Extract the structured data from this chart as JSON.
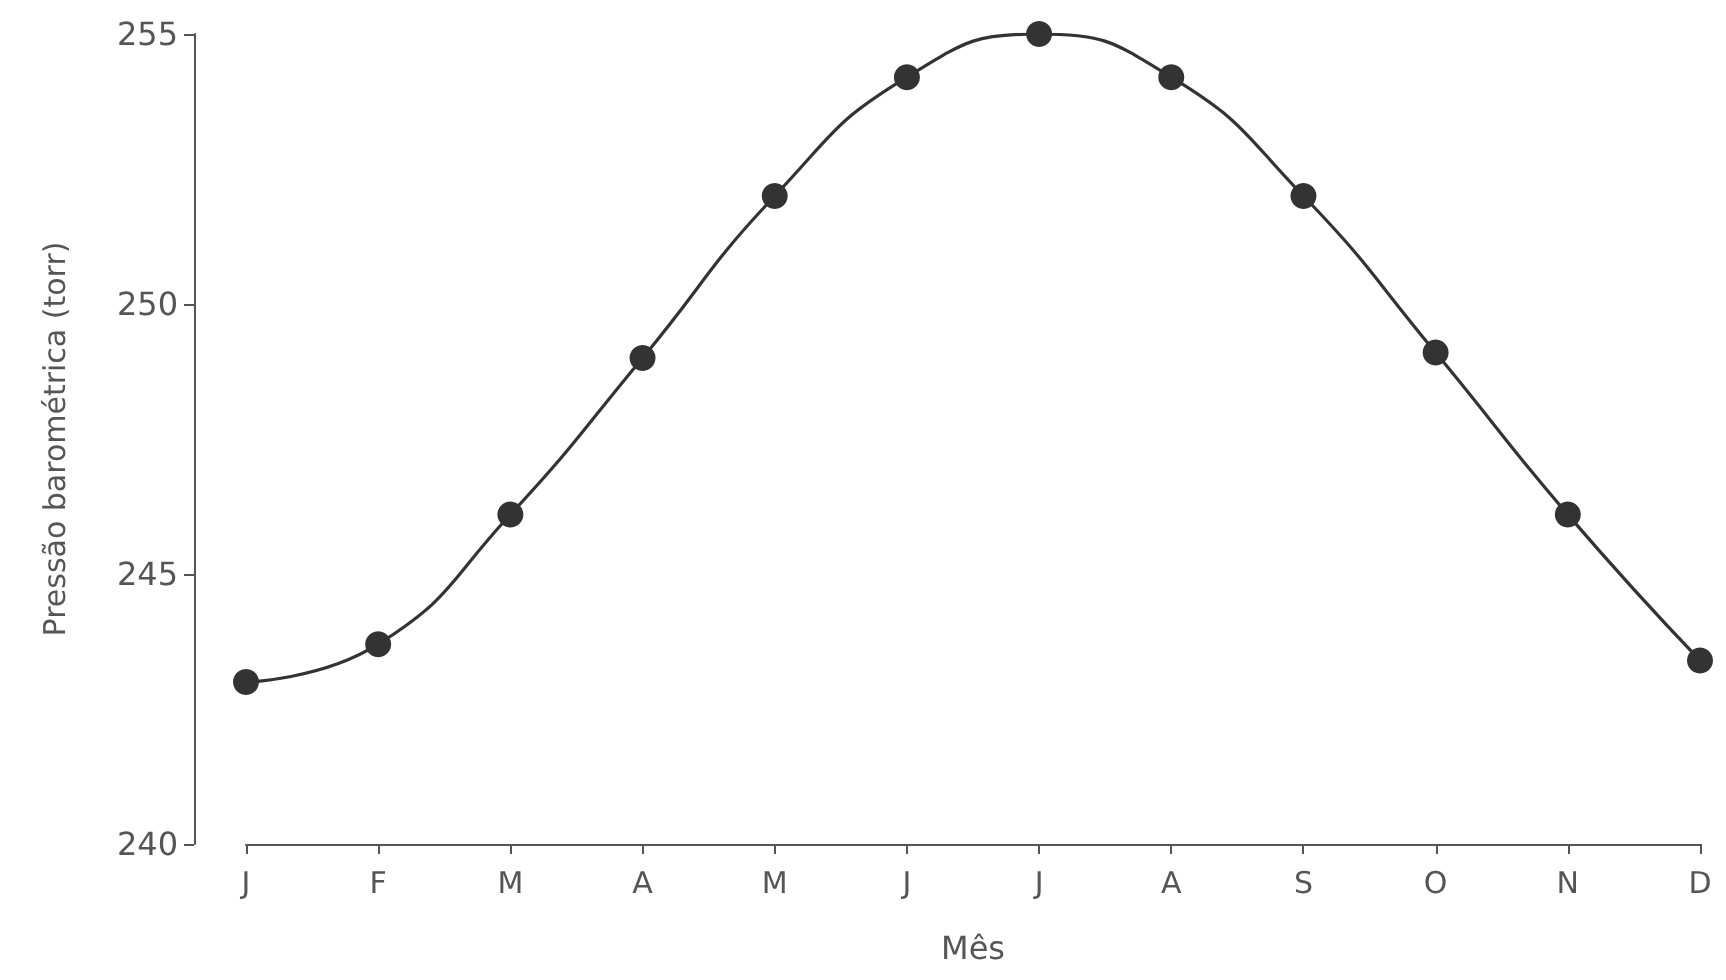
{
  "chart_data": {
    "type": "line",
    "xlabel": "Mês",
    "ylabel": "Pressão barométrica (torr)",
    "categories": [
      "J",
      "F",
      "M",
      "A",
      "M",
      "J",
      "J",
      "A",
      "S",
      "O",
      "N",
      "D"
    ],
    "series": [
      {
        "color": "#333333",
        "values": [
          243.0,
          243.7,
          246.1,
          249.0,
          252.0,
          254.2,
          255.0,
          254.2,
          252.0,
          249.1,
          246.1,
          243.4
        ]
      }
    ],
    "ylim": [
      240,
      255
    ],
    "yticks": [
      240,
      245,
      250,
      255
    ],
    "grid": false,
    "marker": "circle",
    "line_style": "solid"
  }
}
